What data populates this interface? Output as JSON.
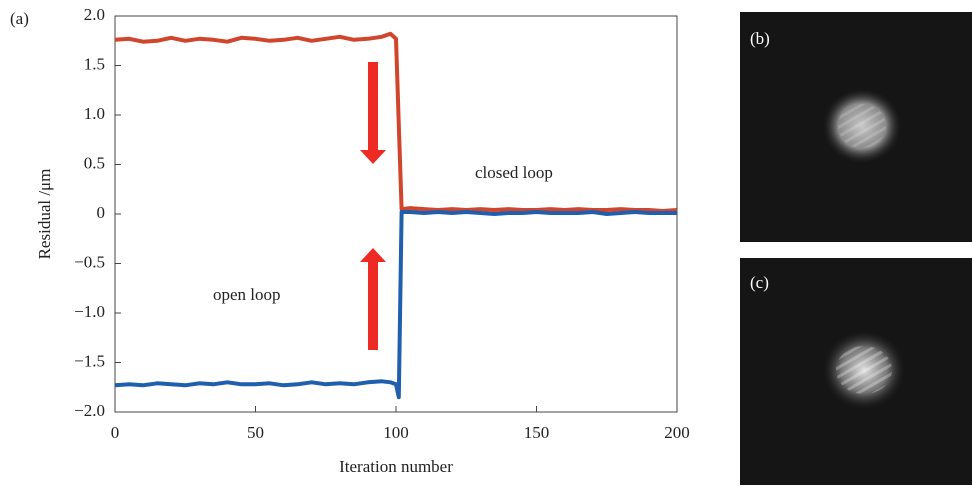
{
  "chart_data": {
    "type": "line",
    "panel_labels": [
      "(a)",
      "(b)",
      "(c)"
    ],
    "xlabel": "Iteration number",
    "ylabel": "Residual /μm",
    "annotations": [
      "closed loop",
      "open loop"
    ],
    "x": [
      0,
      5,
      10,
      15,
      20,
      25,
      30,
      35,
      40,
      45,
      50,
      55,
      60,
      65,
      70,
      75,
      80,
      85,
      90,
      95,
      98,
      100,
      101,
      102,
      105,
      110,
      115,
      120,
      125,
      130,
      135,
      140,
      145,
      150,
      155,
      160,
      165,
      170,
      175,
      180,
      185,
      190,
      195,
      200
    ],
    "series": [
      {
        "color": "#d0452b",
        "values": [
          1.76,
          1.77,
          1.74,
          1.75,
          1.78,
          1.75,
          1.77,
          1.76,
          1.74,
          1.78,
          1.77,
          1.75,
          1.76,
          1.78,
          1.75,
          1.77,
          1.79,
          1.76,
          1.77,
          1.79,
          1.82,
          1.77,
          0.9,
          0.05,
          0.06,
          0.05,
          0.04,
          0.05,
          0.04,
          0.05,
          0.04,
          0.05,
          0.04,
          0.04,
          0.05,
          0.04,
          0.05,
          0.04,
          0.04,
          0.05,
          0.04,
          0.04,
          0.03,
          0.04
        ]
      },
      {
        "color": "#1f5fae",
        "values": [
          -1.73,
          -1.72,
          -1.73,
          -1.71,
          -1.72,
          -1.73,
          -1.71,
          -1.72,
          -1.7,
          -1.72,
          -1.72,
          -1.71,
          -1.73,
          -1.72,
          -1.7,
          -1.72,
          -1.71,
          -1.72,
          -1.7,
          -1.69,
          -1.7,
          -1.72,
          -1.85,
          0.02,
          0.02,
          0.01,
          0.02,
          0.01,
          0.02,
          0.01,
          0.0,
          0.01,
          0.01,
          0.02,
          0.01,
          0.01,
          0.01,
          0.02,
          0.0,
          0.01,
          0.02,
          0.01,
          0.01,
          0.01
        ]
      }
    ],
    "xlim": [
      0,
      200
    ],
    "xticks": [
      0,
      50,
      100,
      150,
      200
    ],
    "ylim": [
      -2,
      2
    ],
    "yticks": [
      {
        "value": -2,
        "label": "−2.0"
      },
      {
        "value": -1.5,
        "label": "−1.5"
      },
      {
        "value": -1,
        "label": "−1.0"
      },
      {
        "value": -0.5,
        "label": "−0.5"
      },
      0,
      0.5,
      {
        "value": 1,
        "label": "1.0"
      },
      1.5,
      {
        "value": 2,
        "label": "2.0"
      }
    ]
  }
}
